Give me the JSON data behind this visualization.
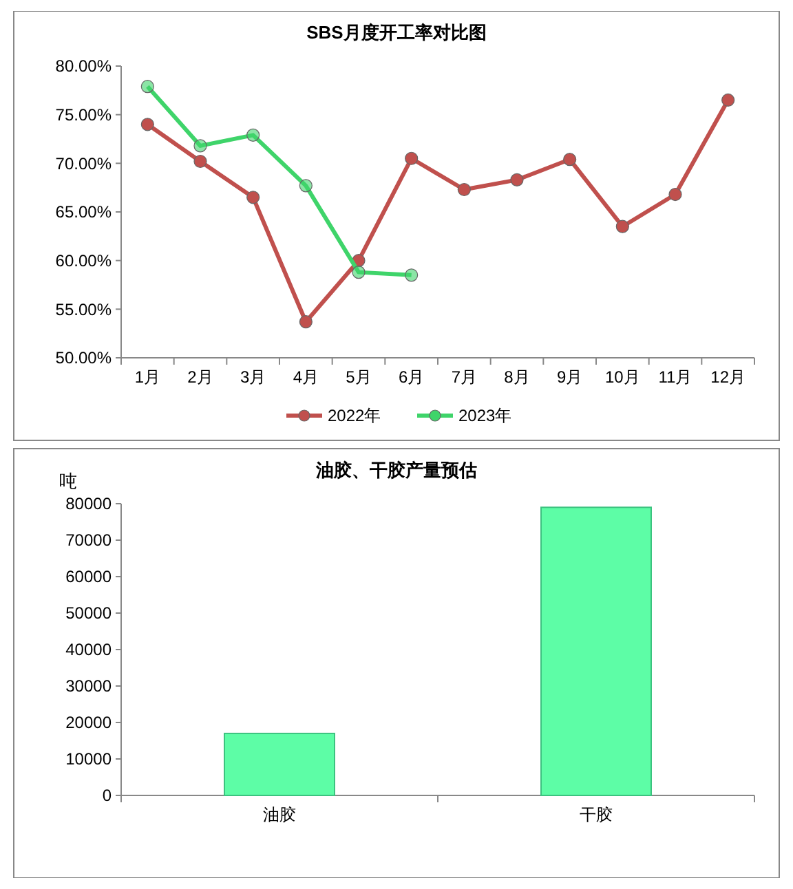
{
  "chart_data": [
    {
      "type": "line",
      "title": "SBS月度开工率对比图",
      "categories": [
        "1月",
        "2月",
        "3月",
        "4月",
        "5月",
        "6月",
        "7月",
        "8月",
        "9月",
        "10月",
        "11月",
        "12月"
      ],
      "series": [
        {
          "name": "2022年",
          "color": "#c0504d",
          "values": [
            74.0,
            70.2,
            66.5,
            53.7,
            60.0,
            70.5,
            67.3,
            68.3,
            70.4,
            63.5,
            66.8,
            76.5
          ]
        },
        {
          "name": "2023年",
          "color": "#3fd46a",
          "values": [
            77.9,
            71.8,
            72.9,
            67.7,
            58.8,
            58.5,
            null,
            null,
            null,
            null,
            null,
            null
          ]
        }
      ],
      "ylim": [
        50,
        80
      ],
      "yticks": [
        {
          "value": 50,
          "label": "50.00%"
        },
        {
          "value": 55,
          "label": "55.00%"
        },
        {
          "value": 60,
          "label": "60.00%"
        },
        {
          "value": 65,
          "label": "65.00%"
        },
        {
          "value": 70,
          "label": "70.00%"
        },
        {
          "value": 75,
          "label": "75.00%"
        },
        {
          "value": 80,
          "label": "80.00%"
        }
      ],
      "grid": false,
      "legend": "bottom",
      "marker": "circle"
    },
    {
      "type": "bar",
      "title": "油胶、干胶产量预估",
      "ylabel": "吨",
      "categories": [
        "油胶",
        "干胶"
      ],
      "values": [
        17000,
        79000
      ],
      "color": "#5dfda6",
      "ylim": [
        0,
        80000
      ],
      "yticks": [
        0,
        10000,
        20000,
        30000,
        40000,
        50000,
        60000,
        70000,
        80000
      ],
      "grid": false,
      "legend": false
    }
  ]
}
